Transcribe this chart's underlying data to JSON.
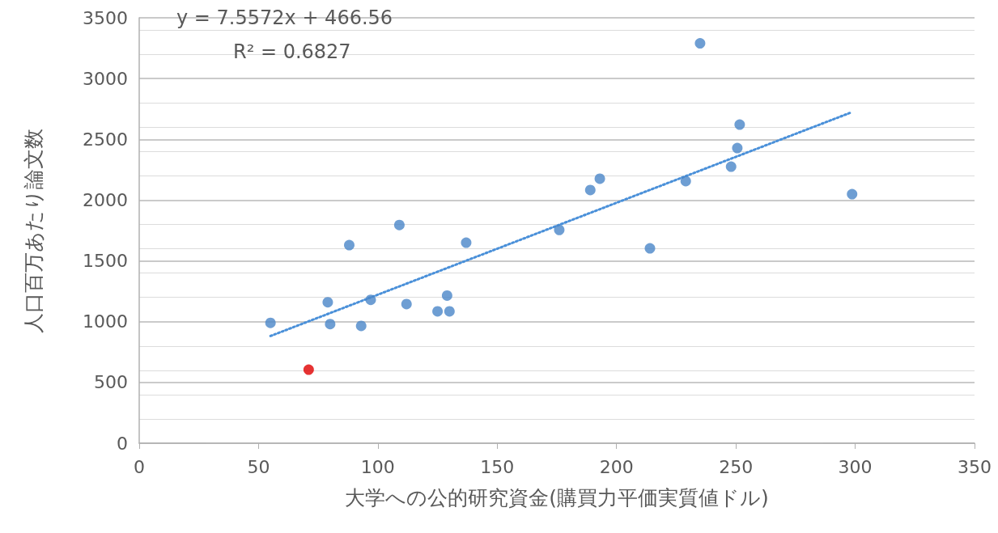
{
  "chart_data": {
    "type": "scatter",
    "xlabel": "大学への公的研究資金(購買力平価実質値ドル)",
    "ylabel": "人口百万あたり論文数",
    "annotations": [
      "y = 7.5572x + 466.56",
      "R² = 0.6827"
    ],
    "series": [
      {
        "color": "#4a86c8",
        "x": [
          55,
          79,
          80,
          88,
          93,
          97,
          109,
          112,
          125,
          130,
          129,
          137,
          176,
          189,
          193,
          214,
          229,
          235,
          248,
          250.6,
          251.6,
          298.7
        ],
        "values": [
          990,
          1160,
          980,
          1630,
          965,
          1180,
          1795,
          1145,
          1085,
          1085,
          1215,
          1650,
          1755,
          2083,
          2176,
          1603,
          2156,
          3290,
          2275,
          2428,
          2621,
          2049
        ]
      },
      {
        "color": "#e00000",
        "x": [
          71
        ],
        "values": [
          605
        ]
      },
      {
        "type": "line",
        "color": "#4a90d9",
        "line_style": "dotted",
        "marker": "none",
        "x": [
          55,
          298
        ],
        "values": [
          882,
          2719
        ]
      }
    ],
    "marker": "circle",
    "xlim": [
      0,
      350
    ],
    "xticks": [
      0,
      50,
      100,
      150,
      200,
      250,
      300,
      350
    ],
    "ylim": [
      0,
      3500
    ],
    "yticks": [
      0,
      500,
      1000,
      1500,
      2000,
      2500,
      3000,
      3500
    ],
    "grid": "y"
  }
}
